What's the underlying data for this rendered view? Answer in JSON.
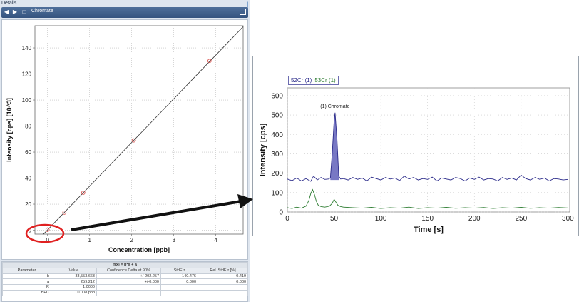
{
  "details": {
    "title": "Details",
    "toolbar_label": "Chromate"
  },
  "results_table": {
    "formula": "f(x) = b*x + a",
    "headers": [
      "Parameter",
      "Value",
      "Confidence Delta at 90%",
      "StdErr",
      "Rel. StdErr [%]"
    ],
    "rows": [
      [
        "b",
        "33,553.663",
        "+/-202.257",
        "140.476",
        "0.419"
      ],
      [
        "a",
        "259.212",
        "+/-0.000",
        "0.000",
        "0.000"
      ],
      [
        "R",
        "1.0000",
        "",
        "",
        ""
      ],
      [
        "BEC",
        "0.008 ppb",
        "",
        "",
        ""
      ]
    ]
  },
  "colors": {
    "calibration_line": "#333333",
    "calibration_points": "#d9534f",
    "series_52Cr": "#2b2b8a",
    "series_53Cr": "#2e7d32",
    "peak_fill": "#4b4bb0",
    "annotation_ellipse": "#e02020",
    "arrow": "#111111"
  },
  "chart_data": [
    {
      "type": "scatter",
      "xlabel": "Concentration [ppb]",
      "ylabel": "Intensity [cps] [10^3]",
      "xlim": [
        -0.3,
        4.65
      ],
      "ylim": [
        -3,
        157
      ],
      "x_ticks": [
        0,
        1,
        2,
        3,
        4
      ],
      "y_ticks": [
        0,
        20,
        40,
        60,
        80,
        100,
        120,
        140
      ],
      "grid": true,
      "points": {
        "x": [
          0,
          0.4,
          0.85,
          2.05,
          3.85
        ],
        "y": [
          0.3,
          13.5,
          28.8,
          69,
          130
        ]
      },
      "fit_line": {
        "slope": 33.55,
        "intercept": 0.26,
        "x_range": [
          -0.1,
          4.65
        ]
      }
    },
    {
      "type": "line",
      "xlabel": "Time [s]",
      "ylabel": "Intensity [cps]",
      "xlim": [
        0,
        302
      ],
      "ylim": [
        0,
        640
      ],
      "x_ticks": [
        0,
        50,
        100,
        150,
        200,
        250,
        300
      ],
      "y_ticks": [
        0,
        100,
        200,
        300,
        400,
        500,
        600
      ],
      "grid": true,
      "legend": [
        "52Cr (1)",
        "53Cr (1)"
      ],
      "peak_annotation": {
        "label": "(1) Chromate",
        "x": 51,
        "y": 512
      },
      "peak_shaded_range": [
        46,
        56
      ],
      "series": [
        {
          "name": "52Cr (1)",
          "x": [
            0,
            5,
            10,
            15,
            20,
            25,
            28,
            32,
            36,
            40,
            44,
            46,
            48,
            50,
            51,
            53,
            55,
            57,
            60,
            65,
            70,
            75,
            80,
            85,
            90,
            95,
            100,
            105,
            110,
            115,
            120,
            125,
            130,
            135,
            140,
            145,
            150,
            155,
            160,
            165,
            170,
            175,
            180,
            185,
            190,
            195,
            200,
            205,
            210,
            215,
            220,
            225,
            230,
            235,
            240,
            245,
            250,
            255,
            260,
            265,
            270,
            275,
            280,
            285,
            290,
            295,
            300
          ],
          "y": [
            170,
            162,
            175,
            160,
            172,
            158,
            185,
            165,
            178,
            168,
            170,
            175,
            300,
            470,
            512,
            380,
            185,
            170,
            172,
            165,
            178,
            168,
            175,
            160,
            180,
            172,
            165,
            178,
            170,
            175,
            162,
            185,
            170,
            178,
            165,
            172,
            168,
            180,
            160,
            175,
            170,
            165,
            178,
            172,
            160,
            175,
            168,
            180,
            165,
            172,
            170,
            160,
            178,
            168,
            175,
            165,
            190,
            172,
            165,
            178,
            168,
            175,
            160,
            172,
            170,
            165,
            168
          ]
        },
        {
          "name": "53Cr (1)",
          "x": [
            0,
            5,
            10,
            15,
            20,
            23,
            25,
            27,
            29,
            31,
            33,
            36,
            40,
            45,
            48,
            50,
            52,
            54,
            57,
            60,
            70,
            80,
            90,
            100,
            110,
            120,
            130,
            140,
            150,
            160,
            170,
            180,
            190,
            200,
            210,
            220,
            230,
            240,
            250,
            260,
            270,
            280,
            290,
            300
          ],
          "y": [
            22,
            18,
            25,
            20,
            30,
            60,
            95,
            115,
            90,
            55,
            35,
            28,
            25,
            30,
            45,
            65,
            50,
            35,
            28,
            25,
            22,
            20,
            24,
            18,
            22,
            20,
            25,
            18,
            22,
            20,
            24,
            19,
            22,
            20,
            23,
            18,
            22,
            20,
            24,
            19,
            22,
            20,
            23,
            21
          ]
        }
      ]
    }
  ]
}
